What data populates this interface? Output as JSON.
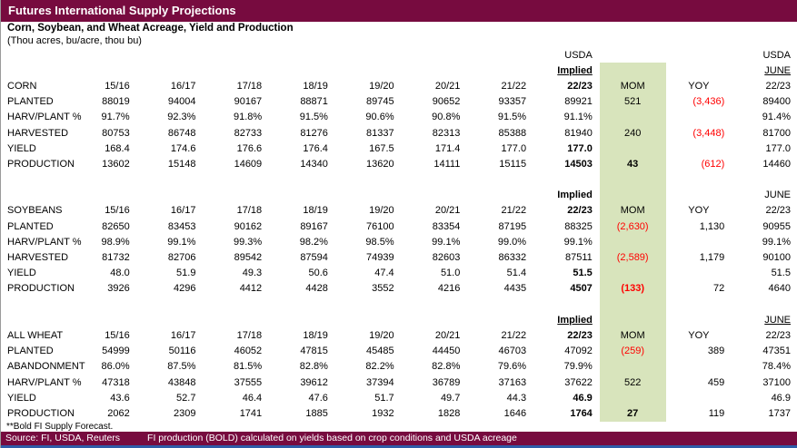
{
  "title": "Futures International Supply Projections",
  "subtitle": "Corn, Soybean, and Wheat Acreage, Yield and Production",
  "units": "(Thou acres, bu/acre, thou bu)",
  "footnote": "**Bold FI Supply Forecast.",
  "source": {
    "left": "Source: FI, USDA, Reuters",
    "right": "FI production (BOLD) calculated on yields based on crop conditions and USDA acreage"
  },
  "colors": {
    "header_maroon": "#770B3F",
    "mom_green": "#D8E4BC",
    "negative_red": "#FF0000"
  },
  "sections": [
    {
      "name": "CORN",
      "usda_label_implied": "USDA",
      "usda_label_june": "USDA",
      "implied_label": "Implied",
      "june_label": "JUNE",
      "implied_year": "22/23",
      "june_year": "22/23",
      "mom_label": "MOM",
      "yoy_label": "YOY",
      "years": [
        "15/16",
        "16/17",
        "17/18",
        "18/19",
        "19/20",
        "20/21",
        "21/22"
      ],
      "rows": [
        {
          "label": "PLANTED",
          "y1": "88019",
          "y2": "94004",
          "y3": "90167",
          "y4": "88871",
          "y5": "89745",
          "y6": "90652",
          "y7": "93357",
          "implied": "89921",
          "mom": "521",
          "yoy": "(3,436)",
          "june": "89400"
        },
        {
          "label": "HARV/PLANT %",
          "y1": "91.7%",
          "y2": "92.3%",
          "y3": "91.8%",
          "y4": "91.5%",
          "y5": "90.6%",
          "y6": "90.8%",
          "y7": "91.5%",
          "implied": "91.1%",
          "mom": "",
          "yoy": "",
          "june": "91.4%"
        },
        {
          "label": "HARVESTED",
          "y1": "80753",
          "y2": "86748",
          "y3": "82733",
          "y4": "81276",
          "y5": "81337",
          "y6": "82313",
          "y7": "85388",
          "implied": "81940",
          "mom": "240",
          "yoy": "(3,448)",
          "june": "81700"
        },
        {
          "label": "YIELD",
          "y1": "168.4",
          "y2": "174.6",
          "y3": "176.6",
          "y4": "176.4",
          "y5": "167.5",
          "y6": "171.4",
          "y7": "177.0",
          "implied": "177.0",
          "implied_bold": true,
          "mom": "",
          "yoy": "",
          "june": "177.0"
        },
        {
          "label": "PRODUCTION",
          "y1": "13602",
          "y2": "15148",
          "y3": "14609",
          "y4": "14340",
          "y5": "13620",
          "y6": "14111",
          "y7": "15115",
          "implied": "14503",
          "implied_bold": true,
          "mom": "43",
          "mom_bold": true,
          "yoy": "(612)",
          "june": "14460"
        }
      ]
    },
    {
      "name": "SOYBEANS",
      "implied_label": "Implied",
      "june_label": "JUNE",
      "implied_year": "22/23",
      "june_year": "22/23",
      "mom_label": "MOM",
      "yoy_label": "YOY",
      "years": [
        "15/16",
        "16/17",
        "17/18",
        "18/19",
        "19/20",
        "20/21",
        "21/22"
      ],
      "rows": [
        {
          "label": "PLANTED",
          "y1": "82650",
          "y2": "83453",
          "y3": "90162",
          "y4": "89167",
          "y5": "76100",
          "y6": "83354",
          "y7": "87195",
          "implied": "88325",
          "mom": "(2,630)",
          "yoy": "1,130",
          "june": "90955"
        },
        {
          "label": "HARV/PLANT %",
          "y1": "98.9%",
          "y2": "99.1%",
          "y3": "99.3%",
          "y4": "98.2%",
          "y5": "98.5%",
          "y6": "99.1%",
          "y7": "99.0%",
          "implied": "99.1%",
          "mom": "",
          "yoy": "",
          "june": "99.1%"
        },
        {
          "label": "HARVESTED",
          "y1": "81732",
          "y2": "82706",
          "y3": "89542",
          "y4": "87594",
          "y5": "74939",
          "y6": "82603",
          "y7": "86332",
          "implied": "87511",
          "mom": "(2,589)",
          "yoy": "1,179",
          "june": "90100"
        },
        {
          "label": "YIELD",
          "y1": "48.0",
          "y2": "51.9",
          "y3": "49.3",
          "y4": "50.6",
          "y5": "47.4",
          "y6": "51.0",
          "y7": "51.4",
          "implied": "51.5",
          "implied_bold": true,
          "mom": "",
          "yoy": "",
          "june": "51.5"
        },
        {
          "label": "PRODUCTION",
          "y1": "3926",
          "y2": "4296",
          "y3": "4412",
          "y4": "4428",
          "y5": "3552",
          "y6": "4216",
          "y7": "4435",
          "implied": "4507",
          "implied_bold": true,
          "mom": "(133)",
          "mom_bold": true,
          "yoy": "72",
          "june": "4640"
        }
      ]
    },
    {
      "name": "ALL WHEAT",
      "implied_label": "Implied",
      "june_label": "JUNE",
      "implied_year": "22/23",
      "june_year": "22/23",
      "mom_label": "MOM",
      "yoy_label": "YOY",
      "years": [
        "15/16",
        "16/17",
        "17/18",
        "18/19",
        "19/20",
        "20/21",
        "21/22"
      ],
      "rows": [
        {
          "label": "PLANTED",
          "y1": "54999",
          "y2": "50116",
          "y3": "46052",
          "y4": "47815",
          "y5": "45485",
          "y6": "44450",
          "y7": "46703",
          "implied": "47092",
          "mom": "(259)",
          "yoy": "389",
          "june": "47351"
        },
        {
          "label": "ABANDONMENT",
          "y1": "86.0%",
          "y2": "87.5%",
          "y3": "81.5%",
          "y4": "82.8%",
          "y5": "82.2%",
          "y6": "82.8%",
          "y7": "79.6%",
          "implied": "79.9%",
          "mom": "",
          "yoy": "",
          "june": "78.4%"
        },
        {
          "label": "HARV/PLANT %",
          "y1": "47318",
          "y2": "43848",
          "y3": "37555",
          "y4": "39612",
          "y5": "37394",
          "y6": "36789",
          "y7": "37163",
          "implied": "37622",
          "mom": "522",
          "yoy": "459",
          "june": "37100"
        },
        {
          "label": "YIELD",
          "y1": "43.6",
          "y2": "52.7",
          "y3": "46.4",
          "y4": "47.6",
          "y5": "51.7",
          "y6": "49.7",
          "y7": "44.3",
          "implied": "46.9",
          "implied_bold": true,
          "mom": "",
          "yoy": "",
          "june": "46.9"
        },
        {
          "label": "PRODUCTION",
          "y1": "2062",
          "y2": "2309",
          "y3": "1741",
          "y4": "1885",
          "y5": "1932",
          "y6": "1828",
          "y7": "1646",
          "implied": "1764",
          "implied_bold": true,
          "mom": "27",
          "mom_bold": true,
          "yoy": "119",
          "june": "1737"
        }
      ]
    }
  ]
}
